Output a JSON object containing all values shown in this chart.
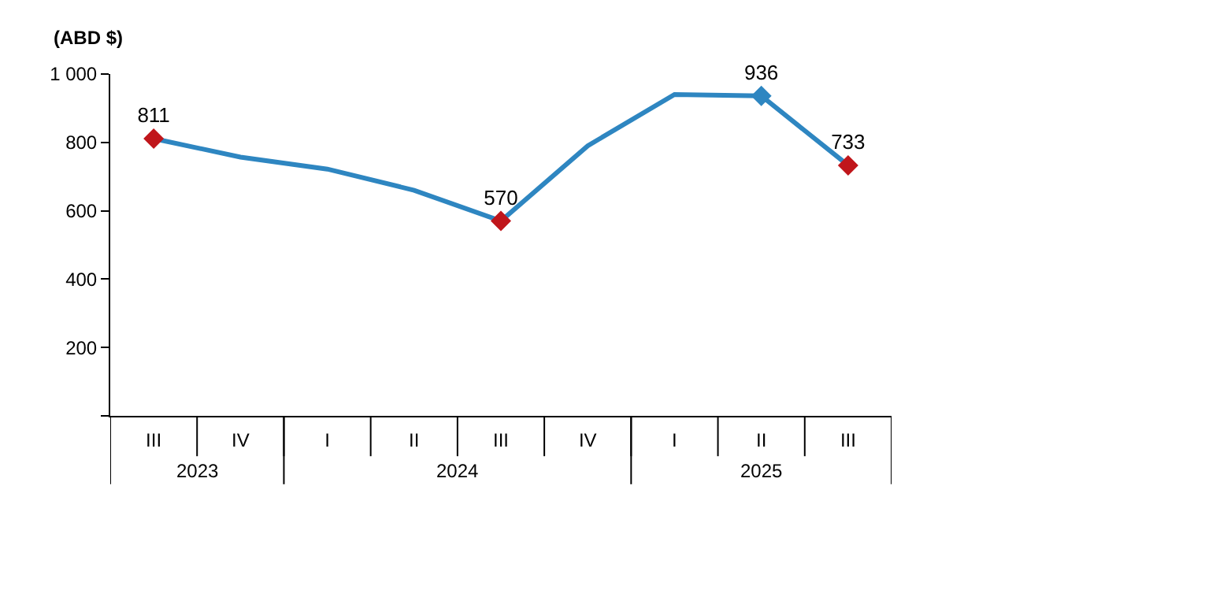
{
  "chart_data": {
    "type": "line",
    "ylabel": "(ABD $)",
    "categories": [
      "III",
      "IV",
      "I",
      "II",
      "III",
      "IV",
      "I",
      "II",
      "III"
    ],
    "annotations": [
      "2023",
      "2024",
      "2025"
    ],
    "series": [
      {
        "color": "#2e86c1",
        "marker": "none",
        "values": [
          811,
          757,
          722,
          660,
          570,
          790,
          940,
          936,
          733
        ]
      },
      {
        "type": "scatter",
        "marker": "diamond",
        "colors": [
          "#c0161b",
          null,
          null,
          null,
          "#c0161b",
          null,
          null,
          "#2e86c1",
          "#c0161b"
        ],
        "values": [
          811,
          null,
          null,
          null,
          570,
          null,
          null,
          936,
          733
        ],
        "value_labels": [
          "811",
          null,
          null,
          null,
          "570",
          null,
          null,
          "936",
          "733"
        ]
      }
    ],
    "ylim": [
      0,
      1000
    ],
    "yticks": [
      {
        "value": 0,
        "label": null
      },
      200,
      400,
      600,
      800,
      {
        "value": 1000,
        "label": "1 000"
      }
    ],
    "grid": false
  }
}
